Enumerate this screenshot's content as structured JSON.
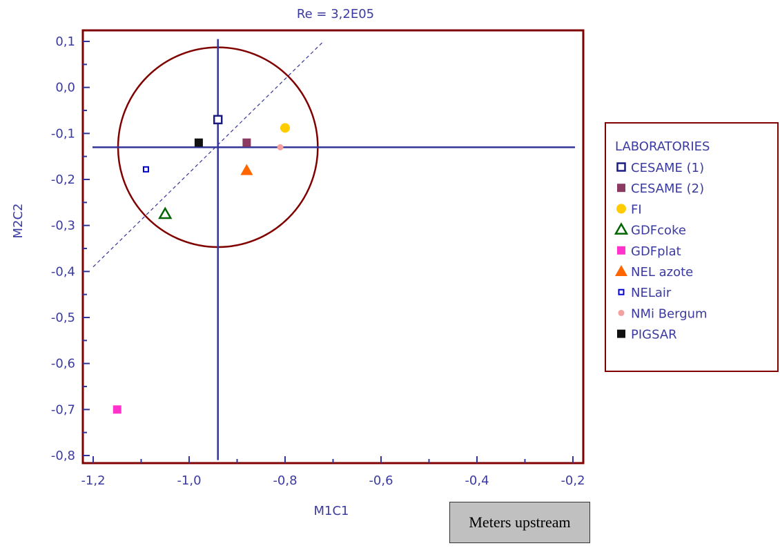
{
  "chart_data": {
    "type": "scatter",
    "title": "Re = 3,2E05",
    "xlabel": "M1C1",
    "ylabel": "M2C2",
    "xlim": [
      -1.2,
      -0.2
    ],
    "ylim": [
      -0.82,
      0.12
    ],
    "x_ticks": [
      -1.2,
      -1.0,
      -0.8,
      -0.6,
      -0.4,
      -0.2
    ],
    "x_tick_labels": [
      "-1,2",
      "-1,0",
      "-0,8",
      "-0,6",
      "-0,4",
      "-0,2"
    ],
    "y_ticks": [
      0.1,
      0.0,
      -0.1,
      -0.2,
      -0.3,
      -0.4,
      -0.5,
      -0.6,
      -0.7,
      -0.8
    ],
    "y_tick_labels": [
      "0,1",
      "0,0",
      "-0,1",
      "-0,2",
      "-0,3",
      "-0,4",
      "-0,5",
      "-0,6",
      "-0,7",
      "-0,8"
    ],
    "grid": false,
    "legend_title": "LABORATORIES",
    "legend_position": "right",
    "series": [
      {
        "name": "CESAME (1)",
        "marker": "square-open",
        "color": "#1a1a80",
        "x": -0.94,
        "y": -0.07
      },
      {
        "name": "CESAME (2)",
        "marker": "square",
        "color": "#8b3a62",
        "x": -0.88,
        "y": -0.12
      },
      {
        "name": "FI",
        "marker": "circle",
        "color": "#ffcc00",
        "x": -0.8,
        "y": -0.088
      },
      {
        "name": "GDFcoke",
        "marker": "triangle-open",
        "color": "#006400",
        "x": -1.05,
        "y": -0.275
      },
      {
        "name": "GDFplat",
        "marker": "square",
        "color": "#ff33cc",
        "x": -1.15,
        "y": -0.7
      },
      {
        "name": "NEL azote",
        "marker": "triangle",
        "color": "#ff6600",
        "x": -0.88,
        "y": -0.18
      },
      {
        "name": "NELair",
        "marker": "square-open-small",
        "color": "#0000cc",
        "x": -1.09,
        "y": -0.178
      },
      {
        "name": "NMi Bergum",
        "marker": "circle-small",
        "color": "#f4a0a0",
        "x": -0.81,
        "y": -0.13
      },
      {
        "name": "PIGSAR",
        "marker": "square",
        "color": "#111111",
        "x": -0.98,
        "y": -0.12
      }
    ],
    "reference": {
      "center": [
        -0.94,
        -0.13
      ],
      "circle_radius_y": 0.217,
      "diagonal_from": [
        -1.2,
        -0.39
      ],
      "diagonal_to": [
        -0.72,
        0.1
      ]
    },
    "colors": {
      "frame": "#800000",
      "crosshair": "#333399",
      "circle": "#800000",
      "diagonal": "#333399",
      "text": "#3a3aa0"
    }
  },
  "note": {
    "text": "Meters upstream"
  }
}
